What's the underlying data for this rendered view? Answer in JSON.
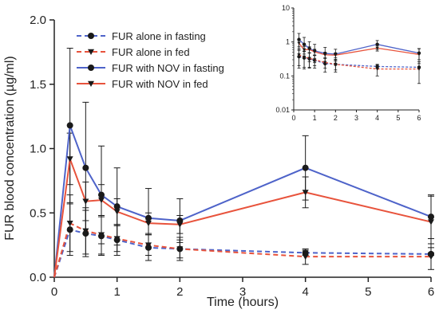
{
  "chart_data": [
    {
      "type": "line",
      "xlabel": "Time (hours)",
      "ylabel": "FUR blood concentration (µg/ml)",
      "xlim": [
        0,
        6
      ],
      "ylim": [
        0,
        2.0
      ],
      "xticks": [
        "0",
        "1",
        "2",
        "3",
        "4",
        "5",
        "6"
      ],
      "yticks": [
        "0.0",
        "0.5",
        "1.0",
        "1.5",
        "2.0"
      ],
      "legend_position": "top-left",
      "series": [
        {
          "name": "FUR alone in fasting",
          "color": "#4e63c9",
          "dash": true,
          "marker": "circle",
          "x": [
            0,
            0.25,
            0.5,
            0.75,
            1,
            1.5,
            2,
            4,
            6
          ],
          "y": [
            0,
            0.37,
            0.34,
            0.32,
            0.29,
            0.23,
            0.22,
            0.19,
            0.18
          ],
          "err": [
            0,
            0.2,
            0.18,
            0.15,
            0.12,
            0.1,
            0.09,
            0.02,
            0.01
          ]
        },
        {
          "name": "FUR alone in fed",
          "color": "#e8533c",
          "dash": true,
          "marker": "triangle-down",
          "x": [
            0,
            0.25,
            0.5,
            0.75,
            1,
            1.5,
            2,
            4,
            6
          ],
          "y": [
            0,
            0.42,
            0.36,
            0.33,
            0.3,
            0.25,
            0.22,
            0.16,
            0.16
          ],
          "err": [
            0,
            0.22,
            0.18,
            0.15,
            0.1,
            0.08,
            0.07,
            0.06,
            0.1
          ]
        },
        {
          "name": "FUR with NOV in fasting",
          "color": "#4e63c9",
          "dash": false,
          "marker": "circle",
          "x": [
            0,
            0.25,
            0.5,
            0.75,
            1,
            1.5,
            2,
            4,
            6
          ],
          "y": [
            0,
            1.18,
            0.85,
            0.64,
            0.55,
            0.46,
            0.44,
            0.85,
            0.47
          ],
          "err": [
            0,
            0.6,
            0.51,
            0.38,
            0.3,
            0.23,
            0.17,
            0.25,
            0.17
          ]
        },
        {
          "name": "FUR with NOV in fed",
          "color": "#e8533c",
          "dash": false,
          "marker": "triangle-down",
          "x": [
            0,
            0.25,
            0.5,
            0.75,
            1,
            1.5,
            2,
            4,
            6
          ],
          "y": [
            0,
            0.92,
            0.59,
            0.6,
            0.51,
            0.42,
            0.41,
            0.66,
            0.43
          ],
          "err": [
            0,
            0.2,
            0.15,
            0.12,
            0.1,
            0.08,
            0.07,
            0.12,
            0.2
          ]
        }
      ]
    },
    {
      "type": "line",
      "scale": "log",
      "xlim": [
        0,
        6
      ],
      "ylim": [
        0.01,
        10
      ],
      "xticks": [
        "0",
        "1",
        "2",
        "3",
        "4",
        "5",
        "6"
      ],
      "yticks": [
        "0.01",
        "0.1",
        "1",
        "10"
      ],
      "series": [
        {
          "color": "#4e63c9",
          "dash": true,
          "marker": "circle",
          "x": [
            0.25,
            0.5,
            0.75,
            1,
            1.5,
            2,
            4,
            6
          ],
          "y": [
            0.37,
            0.34,
            0.32,
            0.29,
            0.23,
            0.22,
            0.19,
            0.18
          ]
        },
        {
          "color": "#e8533c",
          "dash": true,
          "marker": "triangle-down",
          "x": [
            0.25,
            0.5,
            0.75,
            1,
            1.5,
            2,
            4,
            6
          ],
          "y": [
            0.42,
            0.36,
            0.33,
            0.3,
            0.25,
            0.22,
            0.16,
            0.16
          ]
        },
        {
          "color": "#4e63c9",
          "dash": false,
          "marker": "circle",
          "x": [
            0.25,
            0.5,
            0.75,
            1,
            1.5,
            2,
            4,
            6
          ],
          "y": [
            1.18,
            0.85,
            0.64,
            0.55,
            0.46,
            0.44,
            0.85,
            0.47
          ]
        },
        {
          "color": "#e8533c",
          "dash": false,
          "marker": "triangle-down",
          "x": [
            0.25,
            0.5,
            0.75,
            1,
            1.5,
            2,
            4,
            6
          ],
          "y": [
            0.92,
            0.59,
            0.6,
            0.51,
            0.42,
            0.41,
            0.66,
            0.43
          ]
        }
      ]
    }
  ]
}
